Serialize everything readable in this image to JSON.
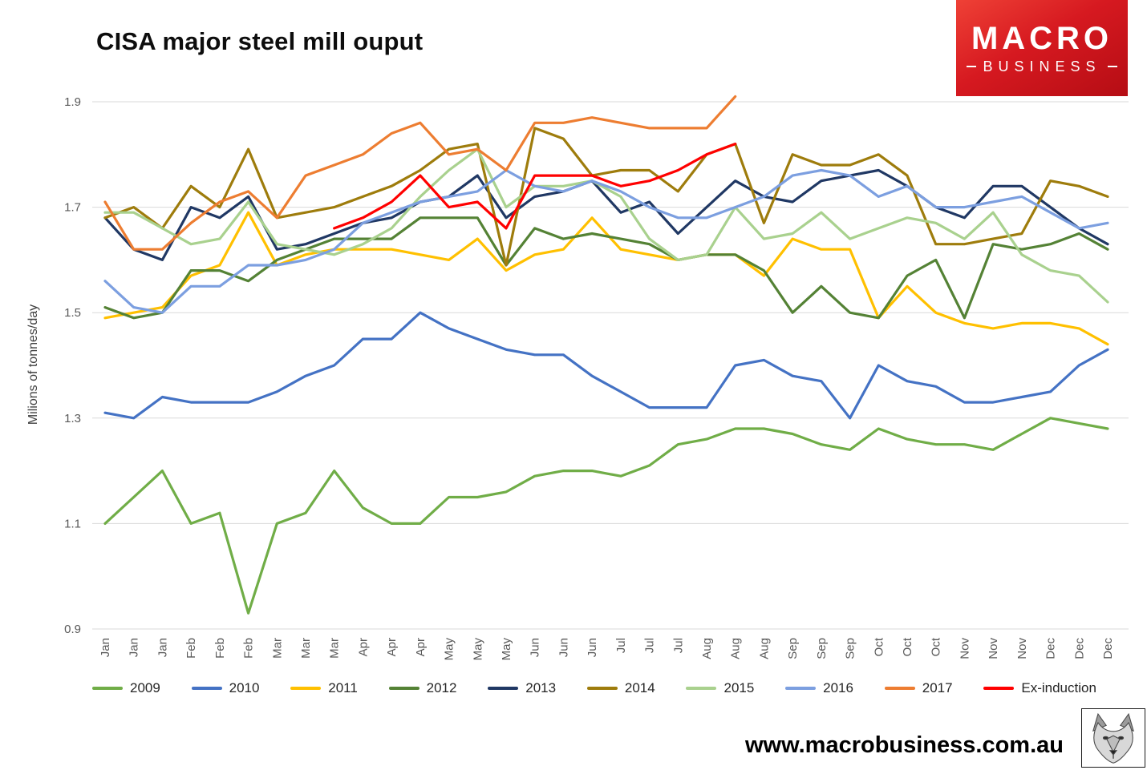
{
  "title": "CISA major steel mill ouput",
  "logo": {
    "line1": "MACRO",
    "line2": "BUSINESS"
  },
  "footer": {
    "url": "www.macrobusiness.com.au"
  },
  "chart_data": {
    "type": "line",
    "title": "CISA major steel mill ouput",
    "xlabel": "",
    "ylabel": "Milions of tonnes/day",
    "ylim": [
      0.9,
      1.9
    ],
    "yticks": [
      1.9,
      1.7,
      1.5,
      1.3,
      1.1,
      0.9
    ],
    "grid": "horizontal",
    "legend_position": "bottom",
    "gridline_color": "#d9d9d9",
    "x_labels": [
      "Jan",
      "Jan",
      "Jan",
      "Feb",
      "Feb",
      "Feb",
      "Mar",
      "Mar",
      "Mar",
      "Apr",
      "Apr",
      "Apr",
      "May",
      "May",
      "May",
      "Jun",
      "Jun",
      "Jun",
      "Jul",
      "Jul",
      "Jul",
      "Aug",
      "Aug",
      "Aug",
      "Sep",
      "Sep",
      "Sep",
      "Oct",
      "Oct",
      "Oct",
      "Nov",
      "Nov",
      "Nov",
      "Dec",
      "Dec",
      "Dec"
    ],
    "series": [
      {
        "name": "2009",
        "color": "#70ad47",
        "values": [
          1.1,
          1.15,
          1.2,
          1.1,
          1.12,
          0.93,
          1.1,
          1.12,
          1.2,
          1.13,
          1.1,
          1.1,
          1.15,
          1.15,
          1.16,
          1.19,
          1.2,
          1.2,
          1.19,
          1.21,
          1.25,
          1.26,
          1.28,
          1.28,
          1.27,
          1.25,
          1.24,
          1.28,
          1.26,
          1.25,
          1.25,
          1.24,
          1.27,
          1.3,
          1.29,
          1.28
        ]
      },
      {
        "name": "2010",
        "color": "#4472c4",
        "values": [
          1.31,
          1.3,
          1.34,
          1.33,
          1.33,
          1.33,
          1.35,
          1.38,
          1.4,
          1.45,
          1.45,
          1.5,
          1.47,
          1.45,
          1.43,
          1.42,
          1.42,
          1.38,
          1.35,
          1.32,
          1.32,
          1.32,
          1.4,
          1.41,
          1.38,
          1.37,
          1.3,
          1.4,
          1.37,
          1.36,
          1.33,
          1.33,
          1.34,
          1.35,
          1.4,
          1.43
        ]
      },
      {
        "name": "2011",
        "color": "#ffc000",
        "values": [
          1.49,
          1.5,
          1.51,
          1.57,
          1.59,
          1.69,
          1.59,
          1.61,
          1.62,
          1.62,
          1.62,
          1.61,
          1.6,
          1.64,
          1.58,
          1.61,
          1.62,
          1.68,
          1.62,
          1.61,
          1.6,
          1.61,
          1.61,
          1.57,
          1.64,
          1.62,
          1.62,
          1.49,
          1.55,
          1.5,
          1.48,
          1.47,
          1.48,
          1.48,
          1.47,
          1.44
        ]
      },
      {
        "name": "2012",
        "color": "#548235",
        "values": [
          1.51,
          1.49,
          1.5,
          1.58,
          1.58,
          1.56,
          1.6,
          1.62,
          1.64,
          1.64,
          1.64,
          1.68,
          1.68,
          1.68,
          1.59,
          1.66,
          1.64,
          1.65,
          1.64,
          1.63,
          1.6,
          1.61,
          1.61,
          1.58,
          1.5,
          1.55,
          1.5,
          1.49,
          1.57,
          1.6,
          1.49,
          1.63,
          1.62,
          1.63,
          1.65,
          1.62
        ]
      },
      {
        "name": "2013",
        "color": "#203864",
        "values": [
          1.68,
          1.62,
          1.6,
          1.7,
          1.68,
          1.72,
          1.62,
          1.63,
          1.65,
          1.67,
          1.68,
          1.71,
          1.72,
          1.76,
          1.68,
          1.72,
          1.73,
          1.75,
          1.69,
          1.71,
          1.65,
          1.7,
          1.75,
          1.72,
          1.71,
          1.75,
          1.76,
          1.77,
          1.74,
          1.7,
          1.68,
          1.74,
          1.74,
          1.7,
          1.66,
          1.63
        ]
      },
      {
        "name": "2014",
        "color": "#9e7c0c",
        "values": [
          1.68,
          1.7,
          1.66,
          1.74,
          1.7,
          1.81,
          1.68,
          1.69,
          1.7,
          1.72,
          1.74,
          1.77,
          1.81,
          1.82,
          1.59,
          1.85,
          1.83,
          1.76,
          1.77,
          1.77,
          1.73,
          1.8,
          1.82,
          1.67,
          1.8,
          1.78,
          1.78,
          1.8,
          1.76,
          1.63,
          1.63,
          1.64,
          1.65,
          1.75,
          1.74,
          1.72
        ]
      },
      {
        "name": "2015",
        "color": "#a9d18e",
        "values": [
          1.69,
          1.69,
          1.66,
          1.63,
          1.64,
          1.71,
          1.63,
          1.62,
          1.61,
          1.63,
          1.66,
          1.72,
          1.77,
          1.81,
          1.7,
          1.74,
          1.74,
          1.75,
          1.72,
          1.64,
          1.6,
          1.61,
          1.7,
          1.64,
          1.65,
          1.69,
          1.64,
          1.66,
          1.68,
          1.67,
          1.64,
          1.69,
          1.61,
          1.58,
          1.57,
          1.52
        ]
      },
      {
        "name": "2016",
        "color": "#7c9fe0",
        "values": [
          1.56,
          1.51,
          1.5,
          1.55,
          1.55,
          1.59,
          1.59,
          1.6,
          1.62,
          1.67,
          1.69,
          1.71,
          1.72,
          1.73,
          1.77,
          1.74,
          1.73,
          1.75,
          1.73,
          1.7,
          1.68,
          1.68,
          1.7,
          1.72,
          1.76,
          1.77,
          1.76,
          1.72,
          1.74,
          1.7,
          1.7,
          1.71,
          1.72,
          1.69,
          1.66,
          1.67
        ]
      },
      {
        "name": "2017",
        "color": "#ed7d31",
        "values": [
          1.71,
          1.62,
          1.62,
          1.67,
          1.71,
          1.73,
          1.68,
          1.76,
          1.78,
          1.8,
          1.84,
          1.86,
          1.8,
          1.81,
          1.77,
          1.86,
          1.86,
          1.87,
          1.86,
          1.85,
          1.85,
          1.85,
          1.91,
          null,
          null,
          null,
          null,
          null,
          null,
          null,
          null,
          null,
          null,
          null,
          null,
          null
        ]
      },
      {
        "name": "Ex-induction",
        "color": "#ff0000",
        "values": [
          null,
          null,
          null,
          null,
          null,
          null,
          null,
          null,
          1.66,
          1.68,
          1.71,
          1.76,
          1.7,
          1.71,
          1.66,
          1.76,
          1.76,
          1.76,
          1.74,
          1.75,
          1.77,
          1.8,
          1.82,
          null,
          null,
          null,
          null,
          null,
          null,
          null,
          null,
          null,
          null,
          null,
          null,
          null
        ]
      }
    ]
  }
}
